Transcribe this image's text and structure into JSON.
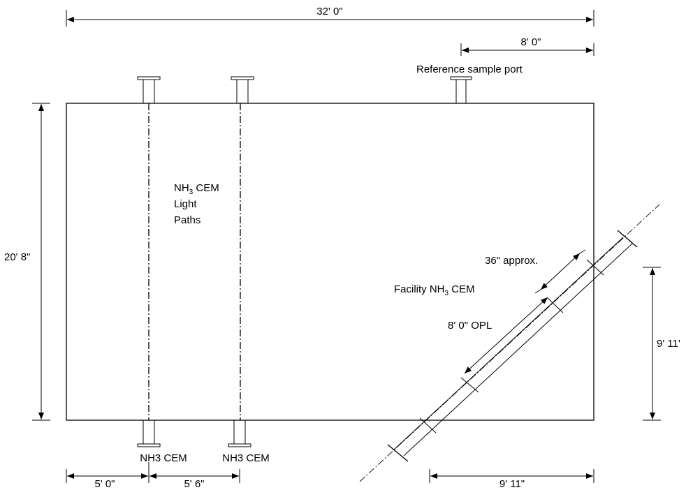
{
  "dimensions": {
    "top_overall": "32' 0\"",
    "top_right": "8' 0\"",
    "left_height": "20' 8\"",
    "right_height": "9' 11'",
    "bottom_left": "5' 0\"",
    "bottom_middle": "5' 6\"",
    "bottom_right": "9' 11\""
  },
  "labels": {
    "reference_port": "Reference sample port",
    "light_paths_line1_main": "NH",
    "light_paths_line1_sub": "3",
    "light_paths_line1_rest": " CEM",
    "light_paths_line2": "Light",
    "light_paths_line3": "Paths",
    "facility_main": "Facility NH",
    "facility_sub": "3",
    "facility_rest": " CEM",
    "opl": "8' 0\" OPL",
    "approx": "36\" approx.",
    "cem_left": "NH3 CEM",
    "cem_right": "NH3 CEM"
  }
}
